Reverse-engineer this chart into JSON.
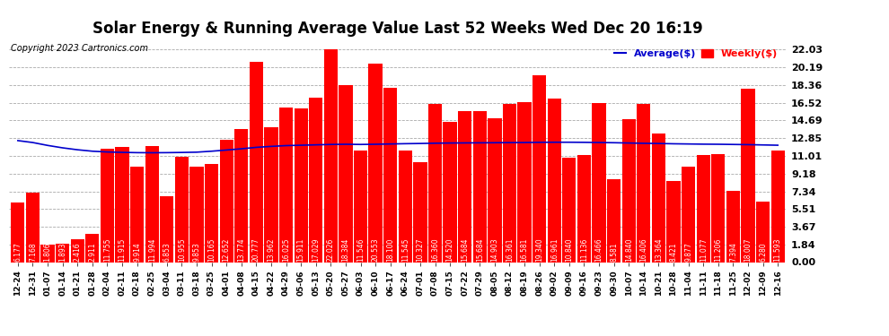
{
  "title": "Solar Energy & Running Average Value Last 52 Weeks Wed Dec 20 16:19",
  "copyright": "Copyright 2023 Cartronics.com",
  "categories": [
    "12-24",
    "12-31",
    "01-07",
    "01-14",
    "01-21",
    "01-28",
    "02-04",
    "02-11",
    "02-18",
    "02-25",
    "03-04",
    "03-11",
    "03-18",
    "03-25",
    "04-01",
    "04-08",
    "04-15",
    "04-22",
    "04-29",
    "05-06",
    "05-13",
    "05-20",
    "05-27",
    "06-03",
    "06-10",
    "06-17",
    "06-24",
    "07-01",
    "07-08",
    "07-15",
    "07-22",
    "07-29",
    "08-05",
    "08-12",
    "08-19",
    "08-26",
    "09-02",
    "09-09",
    "09-16",
    "09-23",
    "09-30",
    "10-07",
    "10-14",
    "10-21",
    "10-28",
    "11-04",
    "11-11",
    "11-18",
    "11-25",
    "12-02",
    "12-09",
    "12-16"
  ],
  "weekly_values": [
    6.177,
    7.168,
    1.806,
    1.893,
    2.416,
    2.911,
    11.755,
    11.915,
    9.914,
    11.994,
    6.853,
    10.955,
    9.853,
    10.165,
    12.652,
    13.774,
    20.777,
    13.962,
    16.025,
    15.911,
    17.029,
    22.026,
    18.384,
    11.546,
    20.553,
    18.1,
    11.545,
    10.327,
    16.36,
    14.52,
    15.684,
    15.684,
    14.903,
    16.361,
    16.581,
    19.34,
    16.961,
    10.84,
    11.136,
    16.466,
    8.581,
    14.84,
    16.406,
    13.364,
    8.421,
    9.877,
    11.077,
    11.206,
    7.394,
    18.007,
    6.28,
    11.593
  ],
  "average_values": [
    12.6,
    12.4,
    12.1,
    11.85,
    11.65,
    11.5,
    11.42,
    11.38,
    11.35,
    11.34,
    11.35,
    11.37,
    11.4,
    11.5,
    11.62,
    11.75,
    11.9,
    12.0,
    12.08,
    12.12,
    12.16,
    12.2,
    12.22,
    12.2,
    12.22,
    12.25,
    12.28,
    12.3,
    12.33,
    12.35,
    12.36,
    12.37,
    12.38,
    12.39,
    12.4,
    12.42,
    12.43,
    12.43,
    12.42,
    12.4,
    12.38,
    12.35,
    12.32,
    12.3,
    12.27,
    12.25,
    12.23,
    12.22,
    12.2,
    12.18,
    12.15,
    12.12
  ],
  "bar_color": "#ff0000",
  "line_color": "#0000cc",
  "bar_label_color": "#ffffff",
  "yticks": [
    0.0,
    1.84,
    3.67,
    5.51,
    7.34,
    9.18,
    11.01,
    12.85,
    14.69,
    16.52,
    18.36,
    20.19,
    22.03
  ],
  "ylim": [
    0.0,
    23.0
  ],
  "background_color": "#ffffff",
  "grid_color": "#aaaaaa",
  "title_fontsize": 12,
  "bar_label_fontsize": 5.5,
  "xtick_fontsize": 6.5,
  "ytick_fontsize": 8,
  "legend_avg_color": "#0000cc",
  "legend_weekly_color": "#ff0000",
  "copyright_fontsize": 7
}
